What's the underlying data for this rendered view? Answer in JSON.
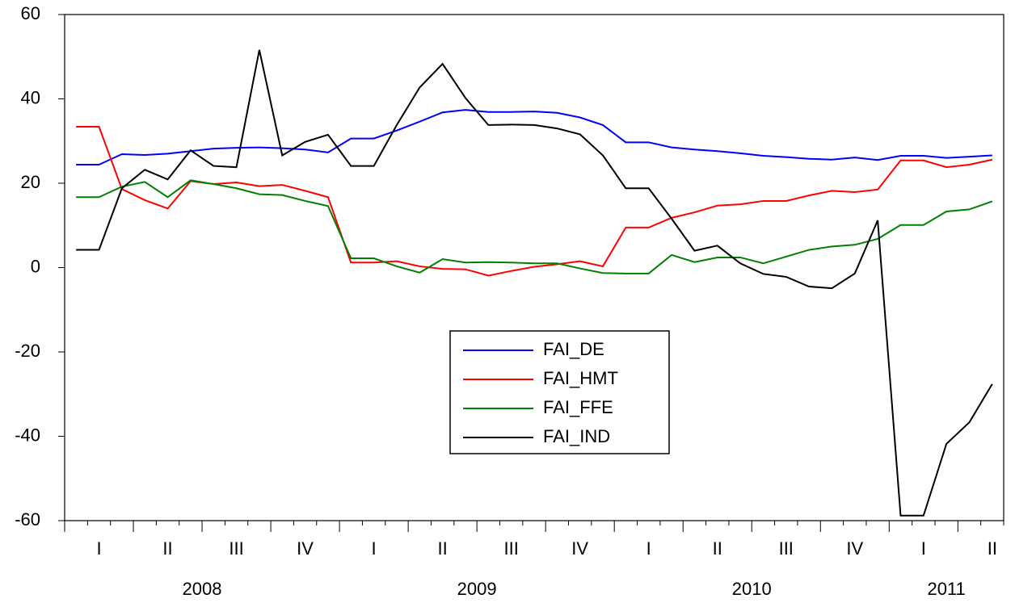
{
  "chart_data": {
    "type": "line",
    "categories": [
      null,
      "I",
      null,
      null,
      "II",
      null,
      null,
      "III",
      null,
      null,
      "IV",
      null,
      null,
      "I",
      null,
      null,
      "II",
      null,
      null,
      "III",
      null,
      null,
      "IV",
      null,
      null,
      "I",
      null,
      null,
      "II",
      null,
      null,
      "III",
      null,
      null,
      "IV",
      null,
      null,
      "I",
      null,
      null,
      "II"
    ],
    "years": [
      "2008",
      "2009",
      "2010",
      "2011"
    ],
    "ylim": [
      -60,
      60
    ],
    "yticks": [
      -60,
      -40,
      -20,
      0,
      20,
      40,
      60
    ],
    "series": [
      {
        "name": "FAI_DE",
        "color": "#0000ff",
        "values": [
          24.4,
          24.4,
          26.9,
          26.7,
          27.0,
          27.6,
          28.2,
          28.4,
          28.5,
          28.3,
          28.0,
          27.3,
          30.6,
          30.6,
          32.5,
          34.6,
          36.8,
          37.4,
          36.9,
          36.9,
          37.0,
          36.7,
          35.6,
          33.8,
          29.7,
          29.7,
          28.5,
          28.0,
          27.6,
          27.1,
          26.5,
          26.2,
          25.8,
          25.6,
          26.1,
          25.5,
          26.5,
          26.5,
          26.0,
          26.3,
          26.6
        ]
      },
      {
        "name": "FAI_HMT",
        "color": "#ff0000",
        "values": [
          33.4,
          33.4,
          18.6,
          16.0,
          14.0,
          20.5,
          19.8,
          20.2,
          19.3,
          19.6,
          18.2,
          16.7,
          1.2,
          1.2,
          1.5,
          0.3,
          -0.3,
          -0.4,
          -1.9,
          -0.8,
          0.2,
          0.8,
          1.5,
          0.3,
          9.5,
          9.5,
          11.8,
          13.1,
          14.7,
          15.0,
          15.8,
          15.8,
          17.1,
          18.2,
          17.9,
          18.5,
          25.4,
          25.4,
          23.8,
          24.4,
          25.6
        ]
      },
      {
        "name": "FAI_FFE",
        "color": "#008000",
        "values": [
          16.7,
          16.7,
          19.2,
          20.3,
          16.7,
          20.7,
          19.8,
          18.8,
          17.4,
          17.2,
          15.8,
          14.6,
          2.2,
          2.2,
          0.3,
          -1.2,
          2.0,
          1.2,
          1.3,
          1.2,
          1.0,
          1.0,
          -0.2,
          -1.3,
          -1.4,
          -1.4,
          3.0,
          1.3,
          2.4,
          2.4,
          1.0,
          2.6,
          4.2,
          5.0,
          5.4,
          6.8,
          10.1,
          10.1,
          13.3,
          13.8,
          15.7
        ]
      },
      {
        "name": "FAI_IND",
        "color": "#000000",
        "values": [
          4.2,
          4.2,
          18.8,
          23.2,
          20.9,
          27.8,
          24.1,
          23.8,
          51.6,
          26.6,
          29.8,
          31.5,
          24.1,
          24.1,
          33.8,
          42.7,
          48.3,
          40.2,
          33.8,
          33.9,
          33.8,
          33.0,
          31.6,
          26.6,
          18.8,
          18.8,
          11.6,
          4.0,
          5.2,
          1.0,
          -1.5,
          -2.2,
          -4.5,
          -4.9,
          -1.4,
          11.2,
          -58.8,
          -58.8,
          -41.8,
          -36.7,
          -27.6
        ]
      }
    ]
  }
}
